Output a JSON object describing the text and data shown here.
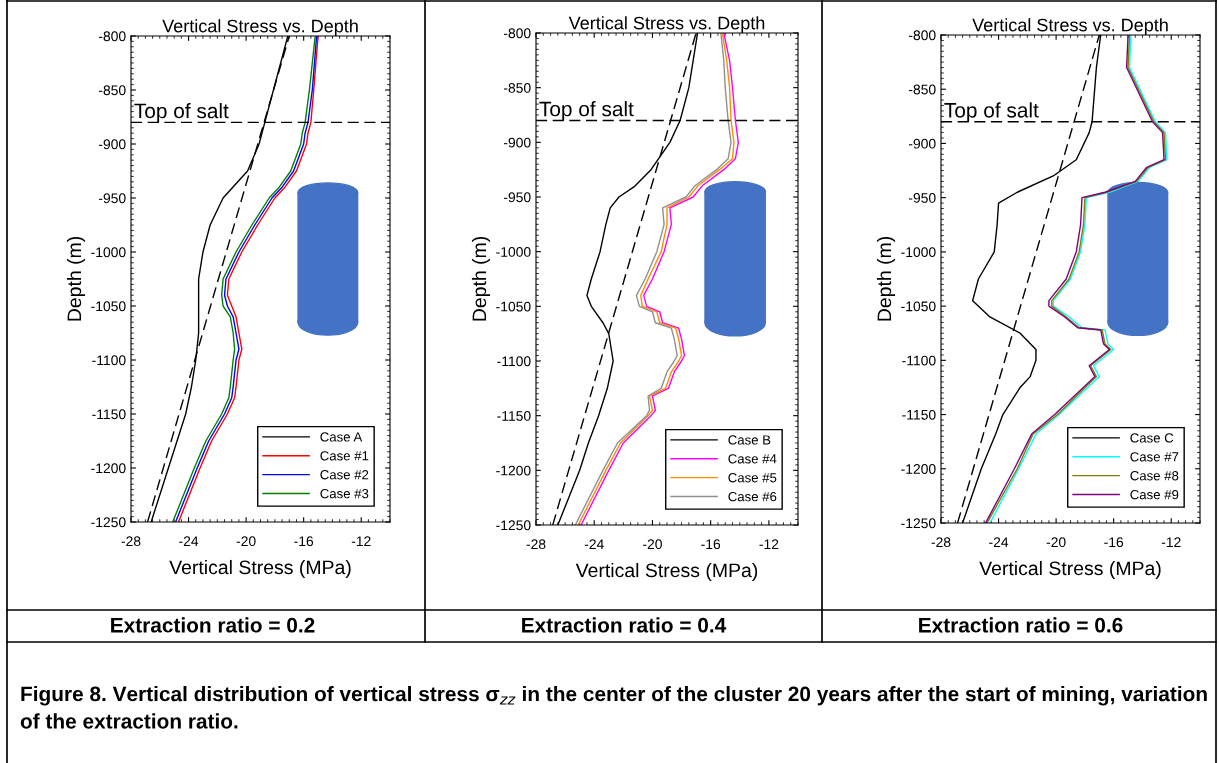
{
  "chart_data": [
    {
      "type": "line",
      "title": "Vertical Stress vs. Depth",
      "xlabel": "Vertical Stress (MPa)",
      "ylabel": "Depth (m)",
      "xlim": [
        -28,
        -10
      ],
      "ylim": [
        -1250,
        -800
      ],
      "xticks": [
        -28,
        -24,
        -20,
        -16,
        -12
      ],
      "yticks": [
        -1250,
        -1200,
        -1150,
        -1100,
        -1050,
        -1000,
        -950,
        -900,
        -850,
        -800
      ],
      "legend": "bottom right",
      "grid": false,
      "ref_lines": [
        {
          "axis": "y",
          "value": -880,
          "label": "Top of salt",
          "color": "#000000",
          "line_style": "dashed"
        }
      ],
      "annotations": [
        "Extraction ratio = 0.2"
      ],
      "series": [
        {
          "color": "#000000",
          "line_style": "dashed",
          "x": [
            -26.85,
            -17.0
          ],
          "values": [
            -1250,
            -800
          ]
        },
        {
          "name": "Case A",
          "color": "#000000",
          "x": [
            -17.1,
            -18.7,
            -19.1,
            -19.9,
            -21.6,
            -22.5,
            -23.0,
            -23.3,
            -23.3,
            -23.3,
            -23.5,
            -23.8,
            -24.2,
            -25.4,
            -26.6
          ],
          "values": [
            -800,
            -880,
            -900,
            -925,
            -950,
            -975,
            -1000,
            -1025,
            -1050,
            -1075,
            -1100,
            -1125,
            -1150,
            -1200,
            -1250
          ]
        },
        {
          "name": "Case #1",
          "color": "#ff0000",
          "x": [
            -15.0,
            -15.3,
            -15.5,
            -15.7,
            -15.8,
            -16.5,
            -17.3,
            -18.0,
            -19.2,
            -20.3,
            -21.2,
            -21.3,
            -21.0,
            -20.7,
            -20.5,
            -20.3,
            -20.5,
            -20.7,
            -20.8,
            -21.3,
            -22.4,
            -23.2,
            -24.7
          ],
          "values": [
            -800,
            -850,
            -880,
            -890,
            -900,
            -925,
            -940,
            -950,
            -975,
            -1000,
            -1025,
            -1040,
            -1050,
            -1060,
            -1075,
            -1090,
            -1100,
            -1125,
            -1135,
            -1150,
            -1175,
            -1200,
            -1250
          ]
        },
        {
          "name": "Case #2",
          "color": "#0000ff",
          "x": [
            -15.1,
            -15.4,
            -15.7,
            -15.9,
            -16.0,
            -16.7,
            -17.5,
            -18.2,
            -19.4,
            -20.5,
            -21.4,
            -21.5,
            -21.3,
            -20.9,
            -20.7,
            -20.5,
            -20.7,
            -20.9,
            -21.0,
            -21.5,
            -22.6,
            -23.4,
            -24.9
          ],
          "values": [
            -800,
            -850,
            -880,
            -890,
            -900,
            -925,
            -940,
            -950,
            -975,
            -1000,
            -1025,
            -1040,
            -1050,
            -1060,
            -1075,
            -1090,
            -1100,
            -1125,
            -1135,
            -1150,
            -1175,
            -1200,
            -1250
          ]
        },
        {
          "name": "Case #3",
          "color": "#008000",
          "x": [
            -15.2,
            -15.6,
            -15.9,
            -16.1,
            -16.2,
            -16.9,
            -17.7,
            -18.4,
            -19.6,
            -20.7,
            -21.6,
            -21.7,
            -21.6,
            -21.1,
            -20.9,
            -20.8,
            -20.9,
            -21.1,
            -21.2,
            -21.7,
            -22.8,
            -23.6,
            -25.1
          ],
          "values": [
            -800,
            -850,
            -880,
            -890,
            -900,
            -925,
            -940,
            -950,
            -975,
            -1000,
            -1025,
            -1040,
            -1050,
            -1060,
            -1075,
            -1090,
            -1100,
            -1125,
            -1135,
            -1150,
            -1175,
            -1200,
            -1250
          ]
        }
      ]
    },
    {
      "type": "line",
      "title": "Vertical Stress vs. Depth",
      "xlabel": "Vertical Stress (MPa)",
      "ylabel": "Depth (m)",
      "xlim": [
        -28,
        -10
      ],
      "ylim": [
        -1250,
        -800
      ],
      "xticks": [
        -28,
        -24,
        -20,
        -16,
        -12
      ],
      "yticks": [
        -1250,
        -1200,
        -1150,
        -1100,
        -1050,
        -1000,
        -950,
        -900,
        -850,
        -800
      ],
      "legend": "bottom right",
      "grid": false,
      "ref_lines": [
        {
          "axis": "y",
          "value": -880,
          "label": "Top of salt",
          "color": "#000000",
          "line_style": "dashed"
        }
      ],
      "annotations": [
        "Extraction ratio = 0.4"
      ],
      "series": [
        {
          "color": "#000000",
          "line_style": "dashed",
          "x": [
            -26.85,
            -17.0
          ],
          "values": [
            -1250,
            -800
          ]
        },
        {
          "name": "Case B",
          "color": "#000000",
          "x": [
            -16.9,
            -17.5,
            -18.1,
            -18.8,
            -20.1,
            -21.2,
            -22.3,
            -22.9,
            -23.2,
            -23.6,
            -24.2,
            -24.5,
            -24.2,
            -23.4,
            -23.0,
            -22.7,
            -23.1,
            -23.7,
            -24.4,
            -25.0,
            -26.5
          ],
          "values": [
            -800,
            -850,
            -880,
            -900,
            -925,
            -940,
            -950,
            -960,
            -975,
            -1000,
            -1025,
            -1040,
            -1050,
            -1065,
            -1075,
            -1100,
            -1125,
            -1150,
            -1175,
            -1200,
            -1250
          ]
        },
        {
          "name": "Case #4",
          "color": "#ff00ff",
          "x": [
            -15.1,
            -14.7,
            -14.5,
            -14.3,
            -14.1,
            -14.3,
            -15.1,
            -16.6,
            -17.2,
            -18.8,
            -18.7,
            -19.2,
            -20.0,
            -20.6,
            -20.4,
            -19.5,
            -19.3,
            -18.2,
            -18.0,
            -17.8,
            -18.0,
            -18.5,
            -18.9,
            -20.0,
            -19.8,
            -20.1,
            -22.0,
            -23.0,
            -24.9
          ],
          "values": [
            -800,
            -825,
            -850,
            -880,
            -900,
            -915,
            -925,
            -940,
            -950,
            -960,
            -975,
            -1000,
            -1025,
            -1040,
            -1050,
            -1055,
            -1065,
            -1070,
            -1080,
            -1095,
            -1100,
            -1110,
            -1125,
            -1132,
            -1145,
            -1150,
            -1175,
            -1200,
            -1250
          ]
        },
        {
          "name": "Case #5",
          "color": "#ff8c00",
          "x": [
            -15.2,
            -14.9,
            -14.7,
            -14.6,
            -14.4,
            -14.5,
            -15.4,
            -16.9,
            -17.5,
            -19.0,
            -19.0,
            -19.4,
            -20.3,
            -20.8,
            -20.7,
            -19.7,
            -19.5,
            -18.4,
            -18.2,
            -18.0,
            -18.2,
            -18.7,
            -19.1,
            -20.2,
            -20.0,
            -20.3,
            -22.2,
            -23.2,
            -25.1
          ],
          "values": [
            -800,
            -825,
            -850,
            -880,
            -900,
            -915,
            -925,
            -940,
            -950,
            -960,
            -975,
            -1000,
            -1025,
            -1040,
            -1050,
            -1055,
            -1065,
            -1070,
            -1080,
            -1095,
            -1100,
            -1110,
            -1125,
            -1132,
            -1145,
            -1150,
            -1175,
            -1200,
            -1250
          ]
        },
        {
          "name": "Case #6",
          "color": "#909090",
          "x": [
            -15.3,
            -15.1,
            -15.0,
            -14.8,
            -14.6,
            -14.8,
            -15.6,
            -17.1,
            -17.7,
            -19.3,
            -19.2,
            -19.7,
            -20.5,
            -21.1,
            -20.9,
            -20.0,
            -19.8,
            -18.7,
            -18.5,
            -18.3,
            -18.5,
            -19.0,
            -19.4,
            -20.3,
            -20.2,
            -20.4,
            -22.4,
            -23.4,
            -25.3
          ],
          "values": [
            -800,
            -825,
            -850,
            -880,
            -900,
            -915,
            -925,
            -940,
            -950,
            -960,
            -975,
            -1000,
            -1025,
            -1040,
            -1050,
            -1055,
            -1065,
            -1070,
            -1080,
            -1095,
            -1100,
            -1110,
            -1125,
            -1132,
            -1145,
            -1150,
            -1175,
            -1200,
            -1250
          ]
        }
      ]
    },
    {
      "type": "line",
      "title": "Vertical Stress vs. Depth",
      "xlabel": "Vertical Stress (MPa)",
      "ylabel": "Depth (m)",
      "xlim": [
        -28,
        -10
      ],
      "ylim": [
        -1250,
        -800
      ],
      "xticks": [
        -28,
        -24,
        -20,
        -16,
        -12
      ],
      "yticks": [
        -1250,
        -1200,
        -1150,
        -1100,
        -1050,
        -1000,
        -950,
        -900,
        -850,
        -800
      ],
      "legend": "bottom right",
      "grid": false,
      "ref_lines": [
        {
          "axis": "y",
          "value": -880,
          "label": "Top of salt",
          "color": "#000000",
          "line_style": "dashed"
        }
      ],
      "annotations": [
        "Extraction ratio = 0.6",
        "Figure 8. Vertical distribution of vertical stress σ$_{zz}$ in the center of the cluster 20 years after the start of mining, variation of the extraction ratio."
      ],
      "series": [
        {
          "color": "#000000",
          "line_style": "dashed",
          "x": [
            -26.85,
            -17.0
          ],
          "values": [
            -1250,
            -800
          ]
        },
        {
          "name": "Case C",
          "color": "#000000",
          "x": [
            -16.9,
            -17.2,
            -17.5,
            -17.7,
            -18.6,
            -20.2,
            -22.7,
            -24.0,
            -24.1,
            -24.3,
            -25.4,
            -25.8,
            -24.6,
            -22.5,
            -21.4,
            -21.4,
            -21.8,
            -22.5,
            -23.7,
            -24.2,
            -25.2,
            -26.5
          ],
          "values": [
            -800,
            -830,
            -880,
            -890,
            -915,
            -930,
            -945,
            -955,
            -975,
            -1000,
            -1025,
            -1045,
            -1060,
            -1075,
            -1090,
            -1100,
            -1115,
            -1125,
            -1150,
            -1168,
            -1200,
            -1250
          ]
        },
        {
          "name": "Case #7",
          "color": "#00ffff",
          "x": [
            -14.8,
            -14.9,
            -13.1,
            -12.4,
            -12.3,
            -13.5,
            -14.3,
            -16.3,
            -17.9,
            -18.0,
            -18.3,
            -19.0,
            -20.2,
            -20.2,
            -19.1,
            -18.2,
            -16.6,
            -16.4,
            -16.0,
            -17.4,
            -17.0,
            -19.8,
            -21.4,
            -22.6,
            -24.6
          ],
          "values": [
            -800,
            -830,
            -880,
            -890,
            -915,
            -922,
            -935,
            -945,
            -950,
            -975,
            -1000,
            -1025,
            -1045,
            -1050,
            -1060,
            -1070,
            -1072,
            -1085,
            -1090,
            -1105,
            -1115,
            -1150,
            -1168,
            -1200,
            -1250
          ]
        },
        {
          "name": "Case #8",
          "color": "#808000",
          "x": [
            -14.9,
            -15.0,
            -13.2,
            -12.5,
            -12.4,
            -13.6,
            -14.4,
            -16.5,
            -18.0,
            -18.1,
            -18.4,
            -19.1,
            -20.3,
            -20.3,
            -19.3,
            -18.4,
            -16.8,
            -16.6,
            -16.2,
            -17.6,
            -17.2,
            -19.9,
            -21.6,
            -22.7,
            -24.8
          ],
          "values": [
            -800,
            -830,
            -880,
            -890,
            -915,
            -922,
            -935,
            -945,
            -950,
            -975,
            -1000,
            -1025,
            -1045,
            -1050,
            -1060,
            -1070,
            -1072,
            -1085,
            -1090,
            -1105,
            -1115,
            -1150,
            -1168,
            -1200,
            -1250
          ]
        },
        {
          "name": "Case #9",
          "color": "#800080",
          "x": [
            -15.0,
            -15.1,
            -13.3,
            -12.6,
            -12.5,
            -13.7,
            -14.5,
            -16.6,
            -18.2,
            -18.3,
            -18.6,
            -19.3,
            -20.5,
            -20.5,
            -19.4,
            -18.5,
            -16.9,
            -16.7,
            -16.3,
            -17.7,
            -17.3,
            -20.1,
            -21.7,
            -22.9,
            -24.9
          ],
          "values": [
            -800,
            -830,
            -880,
            -890,
            -915,
            -922,
            -935,
            -945,
            -950,
            -975,
            -1000,
            -1025,
            -1045,
            -1050,
            -1060,
            -1070,
            -1072,
            -1085,
            -1090,
            -1105,
            -1115,
            -1150,
            -1168,
            -1200,
            -1250
          ]
        }
      ]
    }
  ]
}
